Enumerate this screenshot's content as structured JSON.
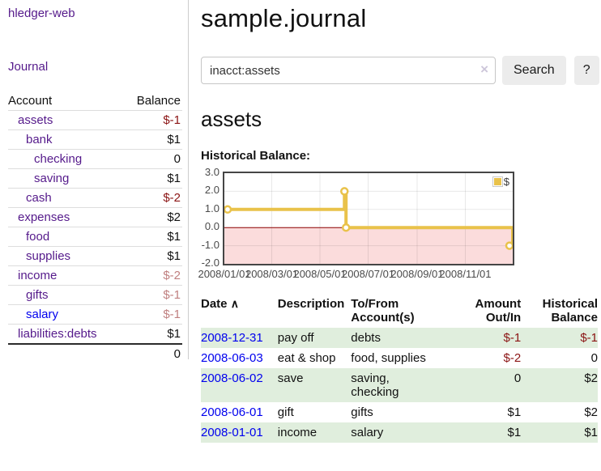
{
  "app": {
    "brand": "hledger-web",
    "nav_journal": "Journal"
  },
  "colors": {
    "link_purple": "#551a8b",
    "link_blue": "#0000ee",
    "negative_red": "#8b1414",
    "muted_negative_red": "#c08080",
    "row_stripe_green": "#e0eedd",
    "chart_line_gold": "#e9c24a",
    "chart_negative_pink": "#fbdcdc",
    "zero_line_dark_red": "#8b0000"
  },
  "sidebar": {
    "header": {
      "account": "Account",
      "balance": "Balance"
    },
    "accounts": [
      {
        "name": "assets",
        "balance": "$-1"
      },
      {
        "name": "bank",
        "balance": "$1"
      },
      {
        "name": "checking",
        "balance": "0"
      },
      {
        "name": "saving",
        "balance": "$1"
      },
      {
        "name": "cash",
        "balance": "$-2"
      },
      {
        "name": "expenses",
        "balance": "$2"
      },
      {
        "name": "food",
        "balance": "$1"
      },
      {
        "name": "supplies",
        "balance": "$1"
      },
      {
        "name": "income",
        "balance": "$-2"
      },
      {
        "name": "gifts",
        "balance": "$-1"
      },
      {
        "name": "salary",
        "balance": "$-1"
      },
      {
        "name": "liabilities:debts",
        "balance": "$1"
      }
    ],
    "total": "0"
  },
  "header": {
    "title": "sample.journal"
  },
  "search": {
    "value": "inacct:assets",
    "clear_icon": "×",
    "button": "Search",
    "help_button": "?"
  },
  "main": {
    "account_heading": "assets",
    "chart_label": "Historical Balance:"
  },
  "chart_data": {
    "type": "line",
    "step": true,
    "title": "Historical Balance:",
    "legend": "$",
    "series": [
      {
        "name": "$",
        "color": "#e9c24a",
        "points": [
          {
            "date": "2008-01-01",
            "day": 0,
            "value": 1.0
          },
          {
            "date": "2008-06-01",
            "day": 152,
            "value": 2.0
          },
          {
            "date": "2008-06-03",
            "day": 154,
            "value": 0.0
          },
          {
            "date": "2008-12-31",
            "day": 365,
            "value": -1.0
          }
        ]
      }
    ],
    "x_span_days": 365,
    "xticks": [
      {
        "label": "2008/01/01",
        "day": 0
      },
      {
        "label": "2008/03/01",
        "day": 60
      },
      {
        "label": "2008/05/01",
        "day": 121
      },
      {
        "label": "2008/07/01",
        "day": 182
      },
      {
        "label": "2008/09/01",
        "day": 244
      },
      {
        "label": "2008/11/01",
        "day": 305
      }
    ],
    "yticks": [
      "3.0",
      "2.0",
      "1.0",
      "0.0",
      "-1.0",
      "-2.0"
    ],
    "ylim": [
      -2,
      3
    ],
    "grid": true,
    "legend_position": "top-right",
    "negative_fill": "#fbdcdc",
    "zero_line_color": "#8b0000",
    "grid_color": "rgba(0,0,0,0.09)"
  },
  "transactions": {
    "headers": {
      "date": "Date",
      "sort_icon": "∧",
      "description": "Description",
      "accounts": "To/From Account(s)",
      "amount": "Amount Out/In",
      "balance": "Historical Balance"
    },
    "rows": [
      {
        "date": "2008-12-31",
        "description": "pay off",
        "accounts": "debts",
        "amount": "$-1",
        "balance": "$-1"
      },
      {
        "date": "2008-06-03",
        "description": "eat & shop",
        "accounts": "food, supplies",
        "amount": "$-2",
        "balance": "0"
      },
      {
        "date": "2008-06-02",
        "description": "save",
        "accounts": "saving, checking",
        "amount": "0",
        "balance": "$2"
      },
      {
        "date": "2008-06-01",
        "description": "gift",
        "accounts": "gifts",
        "amount": "$1",
        "balance": "$2"
      },
      {
        "date": "2008-01-01",
        "description": "income",
        "accounts": "salary",
        "amount": "$1",
        "balance": "$1"
      }
    ]
  }
}
